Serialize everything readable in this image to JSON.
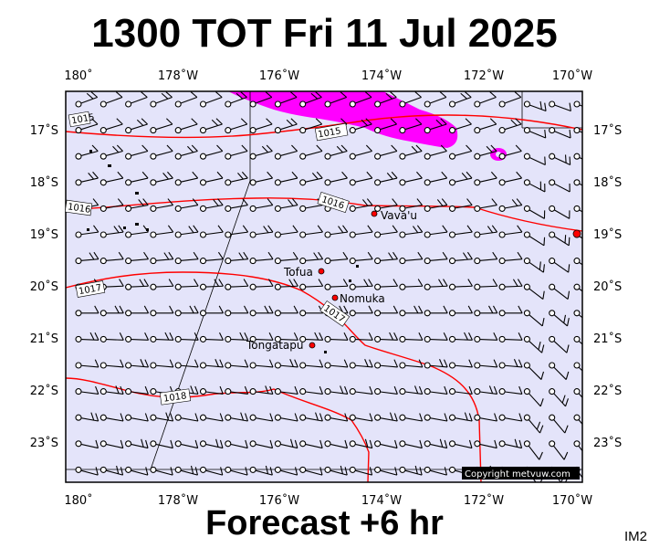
{
  "title": "1300 TOT Fri 11 Jul 2025",
  "footer": "Forecast +6 hr",
  "product_code": "IM2",
  "copyright": "Copyright metvuw.com",
  "colors": {
    "ocean": "#e4e4fa",
    "isobar": "#ff0000",
    "rain": "#ff00ff",
    "frame": "#000000"
  },
  "axes": {
    "lon_labels": [
      "180˚",
      "178˚W",
      "176˚W",
      "174˚W",
      "172˚W",
      "170˚W"
    ],
    "lat_labels": [
      "17˚S",
      "18˚S",
      "19˚S",
      "20˚S",
      "21˚S",
      "22˚S",
      "23˚S"
    ]
  },
  "isobar_labels": [
    "1015",
    "1015",
    "1016",
    "1016",
    "1017",
    "1017",
    "1018"
  ],
  "places": [
    {
      "name": "Vava'u",
      "lon": -174.0,
      "lat": -18.65
    },
    {
      "name": "Tofua",
      "lon": -175.07,
      "lat": -19.75
    },
    {
      "name": "Nomuka",
      "lon": -174.8,
      "lat": -20.25
    },
    {
      "name": "Tongatapu",
      "lon": -175.2,
      "lat": -21.15
    }
  ]
}
